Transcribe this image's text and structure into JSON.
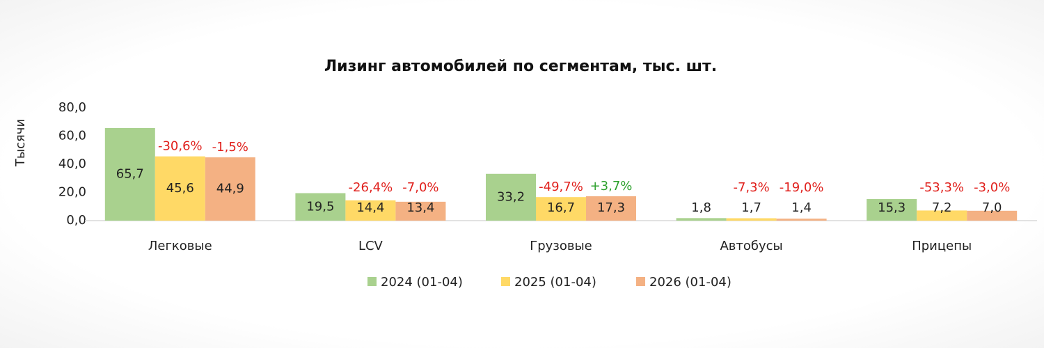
{
  "chart_data": {
    "type": "bar",
    "title": "Лизинг автомобилей по сегментам, тыс. шт.",
    "y_label": "Тысячи",
    "categories": [
      "Легковые",
      "LCV",
      "Грузовые",
      "Автобусы",
      "Прицепы"
    ],
    "ylim": [
      0,
      80
    ],
    "yticks": [
      {
        "value": 0,
        "label": "0,0"
      },
      {
        "value": 20,
        "label": "20,0"
      },
      {
        "value": 40,
        "label": "40,0"
      },
      {
        "value": 60,
        "label": "60,0"
      },
      {
        "value": 80,
        "label": "80,0"
      }
    ],
    "series": [
      {
        "name": "2024 (01-04)",
        "color": "#a9d18e",
        "values": [
          65.7,
          19.5,
          33.2,
          1.8,
          15.3
        ],
        "value_labels": [
          "65,7",
          "19,5",
          "33,2",
          "1,8",
          "15,3"
        ]
      },
      {
        "name": "2025 (01-04)",
        "color": "#ffd966",
        "values": [
          45.6,
          14.4,
          16.7,
          1.7,
          7.2
        ],
        "value_labels": [
          "45,6",
          "14,4",
          "16,7",
          "1,7",
          "7,2"
        ],
        "change_labels": [
          "-30,6%",
          "-26,4%",
          "-49,7%",
          "-7,3%",
          "-53,3%"
        ]
      },
      {
        "name": "2026 (01-04)",
        "color": "#f4b183",
        "values": [
          44.9,
          13.4,
          17.3,
          1.4,
          7.0
        ],
        "value_labels": [
          "44,9",
          "13,4",
          "17,3",
          "1,4",
          "7,0"
        ],
        "change_labels": [
          "-1,5%",
          "-7,0%",
          "+3,7%",
          "-19,0%",
          "-3,0%"
        ]
      }
    ]
  }
}
